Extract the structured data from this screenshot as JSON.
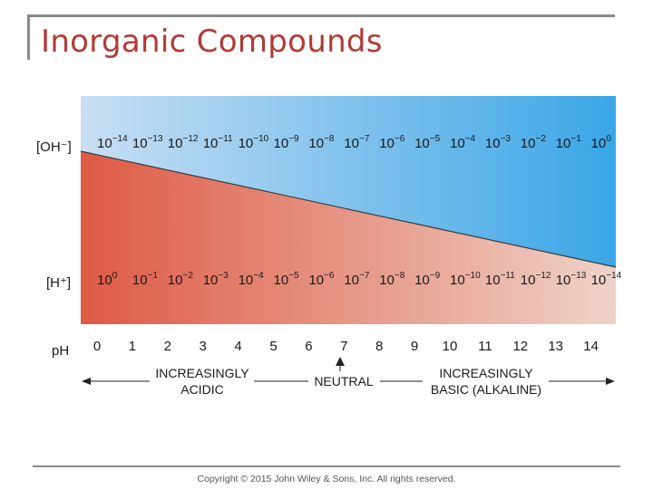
{
  "slide": {
    "title": "Inorganic Compounds",
    "copyright": "Copyright © 2015 John Wiley & Sons, Inc. All rights reserved."
  },
  "diagram": {
    "oh_row_label": "[OH⁻]",
    "h_row_label": "[H⁺]",
    "ph_label": "pH",
    "oh_exponents": [
      "−14",
      "−13",
      "−12",
      "−11",
      "−10",
      "−9",
      "−8",
      "−7",
      "−6",
      "−5",
      "−4",
      "−3",
      "−2",
      "−1",
      "0"
    ],
    "h_exponents": [
      "0",
      "−1",
      "−2",
      "−3",
      "−4",
      "−5",
      "−6",
      "−7",
      "−8",
      "−9",
      "−10",
      "−11",
      "−12",
      "−13",
      "−14"
    ],
    "ph_values": [
      "0",
      "1",
      "2",
      "3",
      "4",
      "5",
      "6",
      "7",
      "8",
      "9",
      "10",
      "11",
      "12",
      "13",
      "14"
    ],
    "base": "10",
    "acidic_line1": "INCREASINGLY",
    "acidic_line2": "ACIDIC",
    "neutral": "NEUTRAL",
    "basic_line1": "INCREASINGLY",
    "basic_line2": "BASIC (ALKALINE)",
    "colors": {
      "blue_light": "#c9dff3",
      "blue_dark": "#3aa6e6",
      "red_dark": "#de5a45",
      "red_light": "#eed3c8"
    }
  }
}
